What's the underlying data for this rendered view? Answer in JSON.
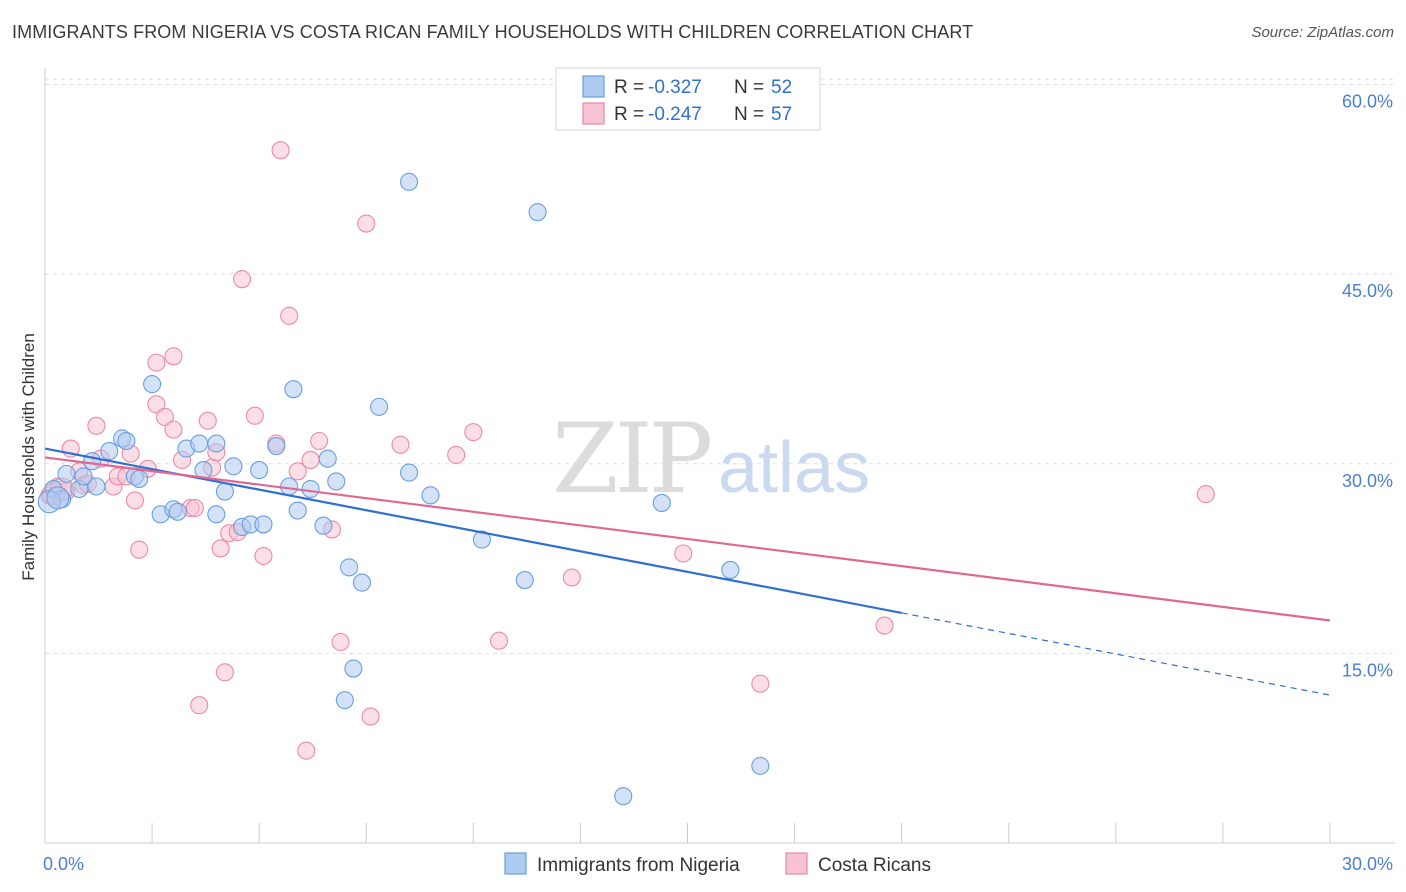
{
  "title": "IMMIGRANTS FROM NIGERIA VS COSTA RICAN FAMILY HOUSEHOLDS WITH CHILDREN CORRELATION CHART",
  "source": "Source: ZipAtlas.com",
  "watermark": {
    "zip": "ZIP",
    "atlas": "atlas"
  },
  "colors": {
    "blue_fill": "#aecbf0",
    "blue_stroke": "#6a9ee0",
    "blue_line": "#2e6fd0",
    "pink_fill": "#f7c2d2",
    "pink_stroke": "#ea8aa8",
    "pink_line": "#e06890",
    "grid": "#dddddd",
    "axis": "#cccccc",
    "tick_text": "#4a7fd0"
  },
  "chart_data": {
    "type": "scatter",
    "xlabel": "",
    "ylabel": "Family Households with Children",
    "xlim": [
      0,
      30
    ],
    "ylim": [
      0,
      60
    ],
    "x_tick_labels": [
      {
        "value": 0,
        "label": "0.0%"
      },
      {
        "value": 30,
        "label": "30.0%"
      }
    ],
    "y_tick_labels": [
      {
        "value": 15,
        "label": "15.0%"
      },
      {
        "value": 30,
        "label": "30.0%"
      },
      {
        "value": 45,
        "label": "45.0%"
      },
      {
        "value": 60,
        "label": "60.0%"
      }
    ],
    "legend": {
      "entries": [
        {
          "r_label": "R =",
          "r_value": "-0.327",
          "n_label": "N =",
          "n_value": "52"
        },
        {
          "r_label": "R =",
          "r_value": "-0.247",
          "n_label": "N =",
          "n_value": "57"
        }
      ]
    },
    "series": [
      {
        "name": "Immigrants from Nigeria",
        "trend": {
          "x0": 0,
          "y0": 31.2,
          "x1": 20,
          "y1": 18.2,
          "dashed_to_x": 30,
          "dashed_to_y": 11.7
        },
        "points": [
          [
            0.2,
            28.0
          ],
          [
            0.4,
            27.2
          ],
          [
            0.5,
            29.2
          ],
          [
            0.8,
            28.0
          ],
          [
            0.9,
            29.0
          ],
          [
            1.1,
            30.2
          ],
          [
            1.2,
            28.2
          ],
          [
            1.5,
            31.0
          ],
          [
            1.8,
            32.0
          ],
          [
            1.9,
            31.8
          ],
          [
            2.1,
            29.0
          ],
          [
            2.2,
            28.8
          ],
          [
            2.5,
            36.3
          ],
          [
            2.7,
            26.0
          ],
          [
            3.0,
            26.4
          ],
          [
            3.1,
            26.2
          ],
          [
            3.3,
            31.2
          ],
          [
            3.6,
            31.6
          ],
          [
            3.7,
            29.5
          ],
          [
            4.0,
            31.6
          ],
          [
            4.0,
            26.0
          ],
          [
            4.2,
            27.8
          ],
          [
            4.4,
            29.8
          ],
          [
            4.6,
            25.0
          ],
          [
            4.8,
            25.2
          ],
          [
            5.0,
            29.5
          ],
          [
            5.1,
            25.2
          ],
          [
            5.4,
            31.4
          ],
          [
            5.7,
            28.2
          ],
          [
            5.8,
            35.9
          ],
          [
            5.9,
            26.3
          ],
          [
            6.2,
            28.0
          ],
          [
            6.5,
            25.1
          ],
          [
            6.6,
            30.4
          ],
          [
            6.8,
            28.6
          ],
          [
            7.1,
            21.8
          ],
          [
            7.4,
            20.6
          ],
          [
            7.2,
            13.8
          ],
          [
            7.0,
            11.3
          ],
          [
            7.8,
            34.5
          ],
          [
            8.5,
            29.3
          ],
          [
            8.5,
            52.3
          ],
          [
            9.0,
            27.5
          ],
          [
            10.2,
            24.0
          ],
          [
            11.2,
            20.8
          ],
          [
            11.5,
            49.9
          ],
          [
            13.5,
            3.7
          ],
          [
            14.4,
            26.9
          ],
          [
            16.0,
            21.6
          ],
          [
            16.7,
            6.1
          ],
          [
            0.1,
            27.0
          ],
          [
            0.3,
            27.3
          ]
        ]
      },
      {
        "name": "Costa Ricans",
        "trend": {
          "x0": 0,
          "y0": 30.5,
          "x1": 30,
          "y1": 17.6
        },
        "points": [
          [
            0.1,
            27.5
          ],
          [
            0.3,
            28.2
          ],
          [
            0.5,
            27.8
          ],
          [
            0.6,
            31.2
          ],
          [
            0.8,
            29.4
          ],
          [
            0.9,
            28.3
          ],
          [
            1.0,
            28.4
          ],
          [
            1.2,
            33.0
          ],
          [
            1.3,
            30.4
          ],
          [
            1.6,
            28.2
          ],
          [
            1.7,
            29.0
          ],
          [
            1.9,
            29.0
          ],
          [
            2.0,
            30.8
          ],
          [
            2.1,
            27.1
          ],
          [
            2.2,
            23.2
          ],
          [
            2.4,
            29.6
          ],
          [
            2.6,
            38.0
          ],
          [
            2.6,
            34.7
          ],
          [
            2.8,
            33.7
          ],
          [
            3.0,
            32.7
          ],
          [
            3.0,
            38.5
          ],
          [
            3.2,
            30.3
          ],
          [
            3.4,
            26.5
          ],
          [
            3.5,
            26.5
          ],
          [
            3.6,
            10.9
          ],
          [
            3.8,
            33.4
          ],
          [
            3.9,
            29.7
          ],
          [
            4.0,
            30.9
          ],
          [
            4.1,
            23.3
          ],
          [
            4.2,
            13.5
          ],
          [
            4.3,
            24.5
          ],
          [
            4.5,
            24.6
          ],
          [
            4.6,
            44.6
          ],
          [
            4.9,
            33.8
          ],
          [
            5.1,
            22.7
          ],
          [
            5.4,
            31.6
          ],
          [
            5.5,
            54.8
          ],
          [
            5.7,
            41.7
          ],
          [
            5.9,
            29.4
          ],
          [
            6.1,
            7.3
          ],
          [
            6.2,
            30.3
          ],
          [
            6.4,
            31.8
          ],
          [
            6.7,
            24.8
          ],
          [
            6.9,
            15.9
          ],
          [
            7.5,
            49.0
          ],
          [
            7.6,
            10.0
          ],
          [
            8.3,
            31.5
          ],
          [
            9.6,
            30.7
          ],
          [
            10.0,
            32.5
          ],
          [
            10.6,
            16.0
          ],
          [
            12.3,
            21.0
          ],
          [
            14.9,
            22.9
          ],
          [
            16.7,
            12.6
          ],
          [
            19.6,
            17.2
          ],
          [
            27.1,
            27.6
          ],
          [
            0.2,
            27.6
          ],
          [
            0.4,
            28.0
          ]
        ]
      }
    ]
  }
}
